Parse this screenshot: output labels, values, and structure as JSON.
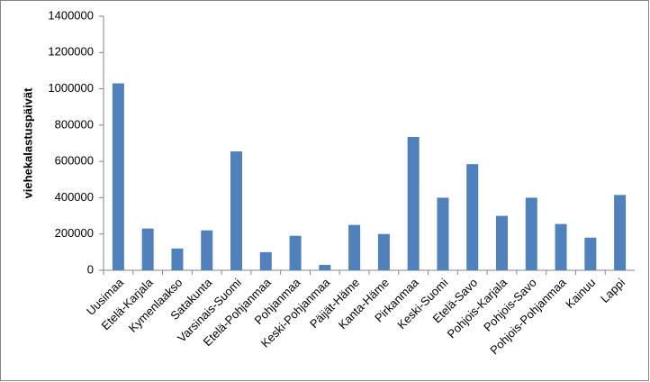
{
  "chart_data": {
    "type": "bar",
    "y_label": "viehekalastuspäivät",
    "categories": [
      "Uusimaa",
      "Etelä-Karjala",
      "Kymenlaakso",
      "Satakunta",
      "Varsinais-Suomi",
      "Etelä-Pohjanmaa",
      "Pohjanmaa",
      "Keski-Pohjanmaa",
      "Päijät-Häme",
      "Kanta-Häme",
      "Pirkanmaa",
      "Keski-Suomi",
      "Etelä-Savo",
      "Pohjois-Karjala",
      "Pohjois-Savo",
      "Pohjois-Pohjanmaa",
      "Kainuu",
      "Lappi"
    ],
    "values": [
      1030000,
      230000,
      120000,
      220000,
      655000,
      100000,
      190000,
      30000,
      250000,
      200000,
      735000,
      400000,
      585000,
      300000,
      400000,
      255000,
      180000,
      415000
    ],
    "color": "#4f81bd",
    "ylim": [
      0,
      1400000
    ],
    "yticks": [
      0,
      200000,
      400000,
      600000,
      800000,
      1000000,
      1200000,
      1400000
    ],
    "grid": false
  }
}
